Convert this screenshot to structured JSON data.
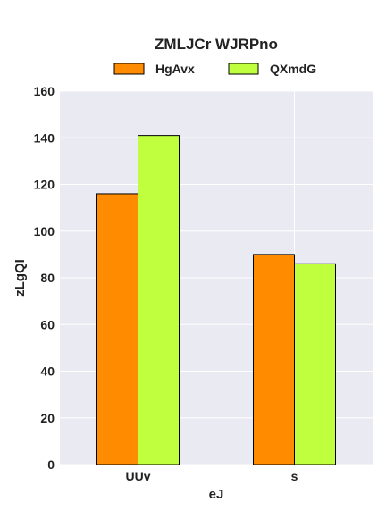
{
  "chart_data": {
    "type": "bar",
    "title": "ZMLJCr WJRPno",
    "xlabel": "eJ",
    "ylabel": "zLgQI",
    "categories": [
      "UUv",
      "s"
    ],
    "series": [
      {
        "name": "HgAvx",
        "color": "#ff8c00",
        "values": [
          116,
          90
        ]
      },
      {
        "name": "QXmdG",
        "color": "#c0ff3e",
        "values": [
          141,
          86
        ]
      }
    ],
    "ylim": [
      0,
      160
    ],
    "yticks": [
      0,
      20,
      40,
      60,
      80,
      100,
      120,
      140,
      160
    ],
    "grid": true,
    "legend_position": "top-center",
    "plot_background": "#eaeaf2",
    "bar_edge_color": "#000000"
  }
}
